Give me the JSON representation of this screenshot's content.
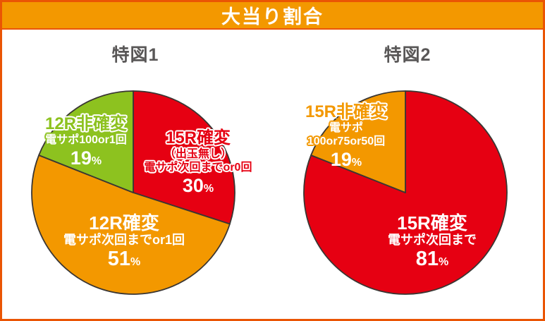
{
  "header": {
    "title": "大当り割合",
    "bg_color": "#F39800",
    "border_color": "#EA5504",
    "text_color": "#FFFFFF"
  },
  "chart_data": [
    {
      "type": "pie",
      "title": "特図1",
      "start": "12-oclock",
      "direction": "clockwise",
      "outline_color": "#3A3633",
      "slices": [
        {
          "label": "15R確変",
          "sub1": "（出玉無し）",
          "sub2": "電サポ次回までor0回",
          "value": 30,
          "unit": "%",
          "color": "#E60012"
        },
        {
          "label": "12R確変",
          "sub1": "電サポ次回までor1回",
          "value": 51,
          "unit": "%",
          "color": "#F39800"
        },
        {
          "label": "12R非確変",
          "sub1": "電サポ100or1回",
          "value": 19,
          "unit": "%",
          "color": "#8DC21F"
        }
      ]
    },
    {
      "type": "pie",
      "title": "特図2",
      "start": "12-oclock",
      "direction": "clockwise",
      "outline_color": "#3A3633",
      "slices": [
        {
          "label": "15R確変",
          "sub1": "電サポ次回まで",
          "value": 81,
          "unit": "%",
          "color": "#E60012"
        },
        {
          "label": "15R非確変",
          "sub1": "電サポ",
          "sub2": "100or75or50回",
          "value": 19,
          "unit": "%",
          "color": "#F39800"
        }
      ]
    }
  ]
}
